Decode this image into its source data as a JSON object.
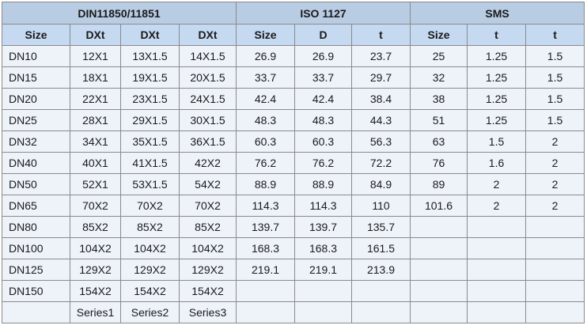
{
  "table": {
    "groups": [
      "DIN11850/11851",
      "ISO 1127",
      "SMS"
    ],
    "headers": [
      "Size",
      "DXt",
      "DXt",
      "DXt",
      "Size",
      "D",
      "t",
      "Size",
      "t",
      "t"
    ],
    "rows": [
      [
        "DN10",
        "12X1",
        "13X1.5",
        "14X1.5",
        "26.9",
        "26.9",
        "23.7",
        "25",
        "1.25",
        "1.5"
      ],
      [
        "DN15",
        "18X1",
        "19X1.5",
        "20X1.5",
        "33.7",
        "33.7",
        "29.7",
        "32",
        "1.25",
        "1.5"
      ],
      [
        "DN20",
        "22X1",
        "23X1.5",
        "24X1.5",
        "42.4",
        "42.4",
        "38.4",
        "38",
        "1.25",
        "1.5"
      ],
      [
        "DN25",
        "28X1",
        "29X1.5",
        "30X1.5",
        "48.3",
        "48.3",
        "44.3",
        "51",
        "1.25",
        "1.5"
      ],
      [
        "DN32",
        "34X1",
        "35X1.5",
        "36X1.5",
        "60.3",
        "60.3",
        "56.3",
        "63",
        "1.5",
        "2"
      ],
      [
        "DN40",
        "40X1",
        "41X1.5",
        "42X2",
        "76.2",
        "76.2",
        "72.2",
        "76",
        "1.6",
        "2"
      ],
      [
        "DN50",
        "52X1",
        "53X1.5",
        "54X2",
        "88.9",
        "88.9",
        "84.9",
        "89",
        "2",
        "2"
      ],
      [
        "DN65",
        "70X2",
        "70X2",
        "70X2",
        "114.3",
        "114.3",
        "110",
        "101.6",
        "2",
        "2"
      ],
      [
        "DN80",
        "85X2",
        "85X2",
        "85X2",
        "139.7",
        "139.7",
        "135.7",
        null,
        null,
        null
      ],
      [
        "DN100",
        "104X2",
        "104X2",
        "104X2",
        "168.3",
        "168.3",
        "161.5",
        null,
        null,
        null
      ],
      [
        "DN125",
        "129X2",
        "129X2",
        "129X2",
        "219.1",
        "219.1",
        "213.9",
        null,
        null,
        null
      ],
      [
        "DN150",
        "154X2",
        "154X2",
        "154X2",
        null,
        null,
        null,
        null,
        null,
        null
      ],
      [
        null,
        "Series1",
        "Series2",
        "Series3",
        null,
        null,
        null,
        null,
        null,
        null
      ]
    ]
  }
}
